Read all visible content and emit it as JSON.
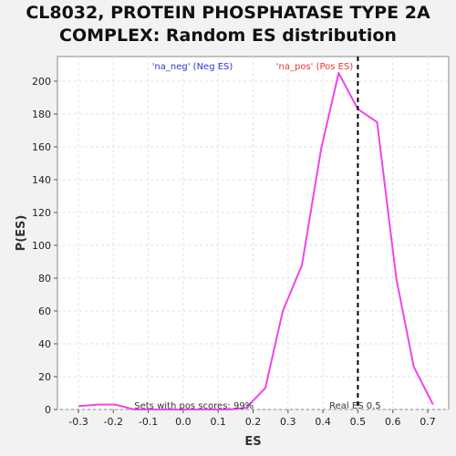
{
  "chart_data": {
    "type": "line",
    "title_lines": [
      "CL8032, PROTEIN PHOSPHATASE TYPE 2A",
      "COMPLEX: Random ES distribution"
    ],
    "xlabel": "ES",
    "ylabel": "P(ES)",
    "xlim": [
      -0.36,
      0.76
    ],
    "ylim": [
      0,
      215
    ],
    "xticks": [
      -0.3,
      -0.2,
      -0.1,
      0.0,
      0.1,
      0.2,
      0.3,
      0.4,
      0.5,
      0.6,
      0.7
    ],
    "xtick_labels": [
      "-0.3",
      "-0.2",
      "-0.1",
      "0.0",
      "0.1",
      "0.2",
      "0.3",
      "0.4",
      "0.5",
      "0.6",
      "0.7"
    ],
    "yticks": [
      0,
      20,
      40,
      60,
      80,
      100,
      120,
      140,
      160,
      180,
      200
    ],
    "ytick_labels": [
      "0",
      "20",
      "40",
      "60",
      "80",
      "100",
      "120",
      "140",
      "160",
      "180",
      "200"
    ],
    "grid": true,
    "series": [
      {
        "color": "#ee44ee",
        "x": [
          -0.3,
          -0.245,
          -0.195,
          -0.14,
          -0.09,
          -0.035,
          0.02,
          0.075,
          0.13,
          0.18,
          0.235,
          0.285,
          0.34,
          0.395,
          0.445,
          0.5,
          0.555,
          0.61,
          0.66,
          0.715
        ],
        "y": [
          2,
          3,
          3,
          0,
          0,
          0,
          0,
          0,
          0,
          1,
          13,
          60,
          88,
          159,
          205,
          183,
          175,
          80,
          26,
          3
        ]
      }
    ],
    "reference_line": {
      "x": 0.5,
      "label": "Real ES 0.5",
      "style": "dashed",
      "color": "#000000"
    },
    "legend": [
      {
        "text": "'na_neg' (Neg ES)",
        "color": "#3333cc"
      },
      {
        "text": "'na_pos' (Pos ES)",
        "color": "#ee3333"
      }
    ],
    "annotations": {
      "pos_scores": "Sets with pos scores: 99%"
    }
  }
}
